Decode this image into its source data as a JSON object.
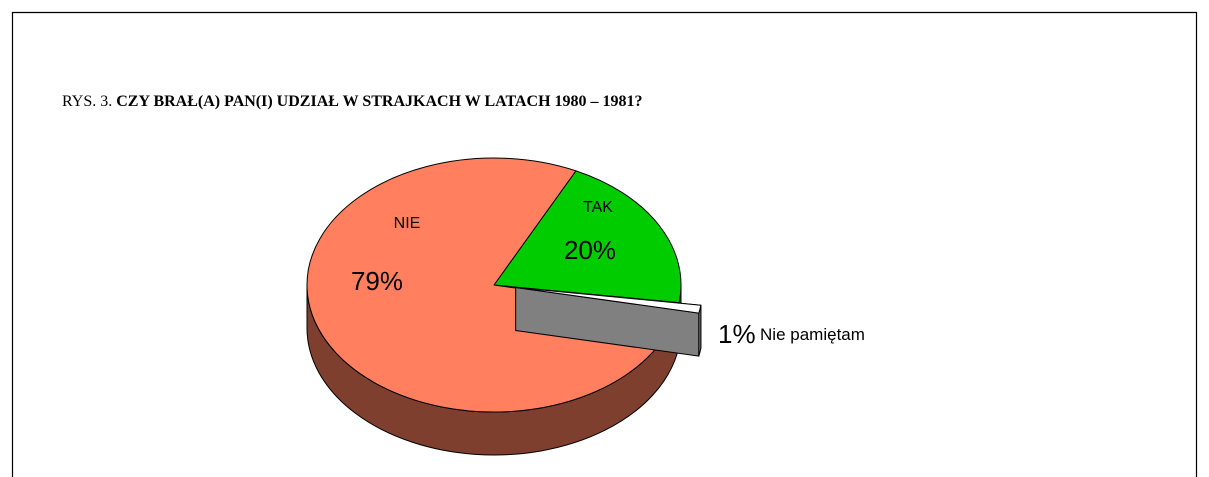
{
  "chart_data": {
    "type": "pie",
    "figure_label": "RYS. 3.",
    "title": "CZY BRAŁ(A) PAN(I) UDZIAŁ W STRAJKACH W LATACH 1980 – 1981?",
    "categories": [
      "TAK",
      "Nie pamiętam",
      "NIE"
    ],
    "values": [
      20,
      1,
      79
    ],
    "value_labels": [
      "20%",
      "1%",
      "79%"
    ],
    "colors": [
      "#00cc00",
      "#ffffff",
      "#ff7f5f"
    ],
    "side_colors": [
      "#006600",
      "#808080",
      "#7f3f2f"
    ],
    "exploded": [
      false,
      true,
      false
    ]
  }
}
